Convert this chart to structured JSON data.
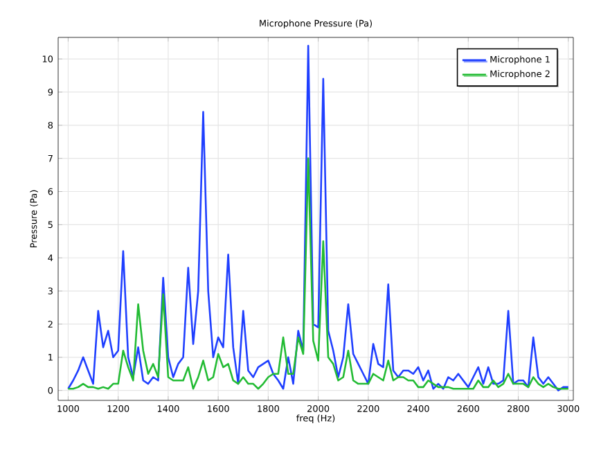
{
  "chart_data": {
    "type": "line",
    "title": "Microphone Pressure (Pa)",
    "xlabel": "freq (Hz)",
    "ylabel": "Pressure (Pa)",
    "x": [
      1000,
      1020,
      1040,
      1060,
      1080,
      1100,
      1120,
      1140,
      1160,
      1180,
      1200,
      1220,
      1240,
      1260,
      1280,
      1300,
      1320,
      1340,
      1360,
      1380,
      1400,
      1420,
      1440,
      1460,
      1480,
      1500,
      1520,
      1540,
      1560,
      1580,
      1600,
      1620,
      1640,
      1660,
      1680,
      1700,
      1720,
      1740,
      1760,
      1780,
      1800,
      1820,
      1840,
      1860,
      1880,
      1900,
      1920,
      1940,
      1960,
      1980,
      2000,
      2020,
      2040,
      2060,
      2080,
      2100,
      2120,
      2140,
      2160,
      2180,
      2200,
      2220,
      2240,
      2260,
      2280,
      2300,
      2320,
      2340,
      2360,
      2380,
      2400,
      2420,
      2440,
      2460,
      2480,
      2500,
      2520,
      2540,
      2560,
      2580,
      2600,
      2620,
      2640,
      2660,
      2680,
      2700,
      2720,
      2740,
      2760,
      2780,
      2800,
      2820,
      2840,
      2860,
      2880,
      2900,
      2920,
      2940,
      2960,
      2980,
      3000
    ],
    "series": [
      {
        "name": "Microphone 1",
        "color": "#1f3fff",
        "values": [
          0.05,
          0.3,
          0.6,
          1.0,
          0.6,
          0.2,
          2.4,
          1.3,
          1.8,
          1.0,
          1.2,
          4.2,
          1.0,
          0.4,
          1.3,
          0.3,
          0.2,
          0.4,
          0.3,
          3.4,
          1.0,
          0.4,
          0.8,
          1.0,
          3.7,
          1.4,
          3.0,
          8.4,
          3.0,
          1.0,
          1.6,
          1.3,
          4.1,
          1.3,
          0.2,
          2.4,
          0.6,
          0.4,
          0.7,
          0.8,
          0.9,
          0.5,
          0.3,
          0.05,
          1.0,
          0.2,
          1.8,
          1.2,
          10.4,
          2.0,
          1.9,
          9.4,
          1.8,
          1.2,
          0.4,
          1.0,
          2.6,
          1.1,
          0.8,
          0.5,
          0.2,
          1.4,
          0.8,
          0.7,
          3.2,
          0.6,
          0.4,
          0.6,
          0.6,
          0.5,
          0.7,
          0.3,
          0.6,
          0.05,
          0.2,
          0.05,
          0.4,
          0.3,
          0.5,
          0.3,
          0.1,
          0.4,
          0.7,
          0.2,
          0.7,
          0.2,
          0.2,
          0.3,
          2.4,
          0.2,
          0.3,
          0.3,
          0.1,
          1.6,
          0.4,
          0.2,
          0.4,
          0.2,
          0.0,
          0.1,
          0.1
        ]
      },
      {
        "name": "Microphone 2",
        "color": "#22bb33",
        "values": [
          0.05,
          0.05,
          0.1,
          0.2,
          0.1,
          0.1,
          0.05,
          0.1,
          0.05,
          0.2,
          0.2,
          1.2,
          0.7,
          0.3,
          2.6,
          1.2,
          0.5,
          0.8,
          0.4,
          2.9,
          0.4,
          0.3,
          0.3,
          0.3,
          0.7,
          0.05,
          0.4,
          0.9,
          0.3,
          0.4,
          1.1,
          0.7,
          0.8,
          0.3,
          0.2,
          0.4,
          0.2,
          0.2,
          0.05,
          0.2,
          0.4,
          0.5,
          0.5,
          1.6,
          0.5,
          0.5,
          1.6,
          1.1,
          7.0,
          1.5,
          0.9,
          4.5,
          1.0,
          0.8,
          0.3,
          0.4,
          1.2,
          0.3,
          0.2,
          0.2,
          0.2,
          0.5,
          0.4,
          0.3,
          0.9,
          0.3,
          0.4,
          0.4,
          0.3,
          0.3,
          0.1,
          0.1,
          0.3,
          0.2,
          0.1,
          0.1,
          0.1,
          0.05,
          0.05,
          0.05,
          0.05,
          0.05,
          0.3,
          0.1,
          0.1,
          0.3,
          0.1,
          0.2,
          0.5,
          0.2,
          0.2,
          0.2,
          0.1,
          0.4,
          0.2,
          0.1,
          0.2,
          0.1,
          0.05,
          0.05,
          0.05
        ]
      }
    ],
    "xlim": [
      960,
      3020
    ],
    "ylim": [
      -0.3,
      10.65
    ],
    "xticks": [
      1000,
      1200,
      1400,
      1600,
      1800,
      2000,
      2200,
      2400,
      2600,
      2800,
      3000
    ],
    "yticks": [
      0,
      1,
      2,
      3,
      4,
      5,
      6,
      7,
      8,
      9,
      10
    ],
    "grid": true,
    "legend": "top right",
    "marker": "none",
    "line_style": "solid"
  }
}
